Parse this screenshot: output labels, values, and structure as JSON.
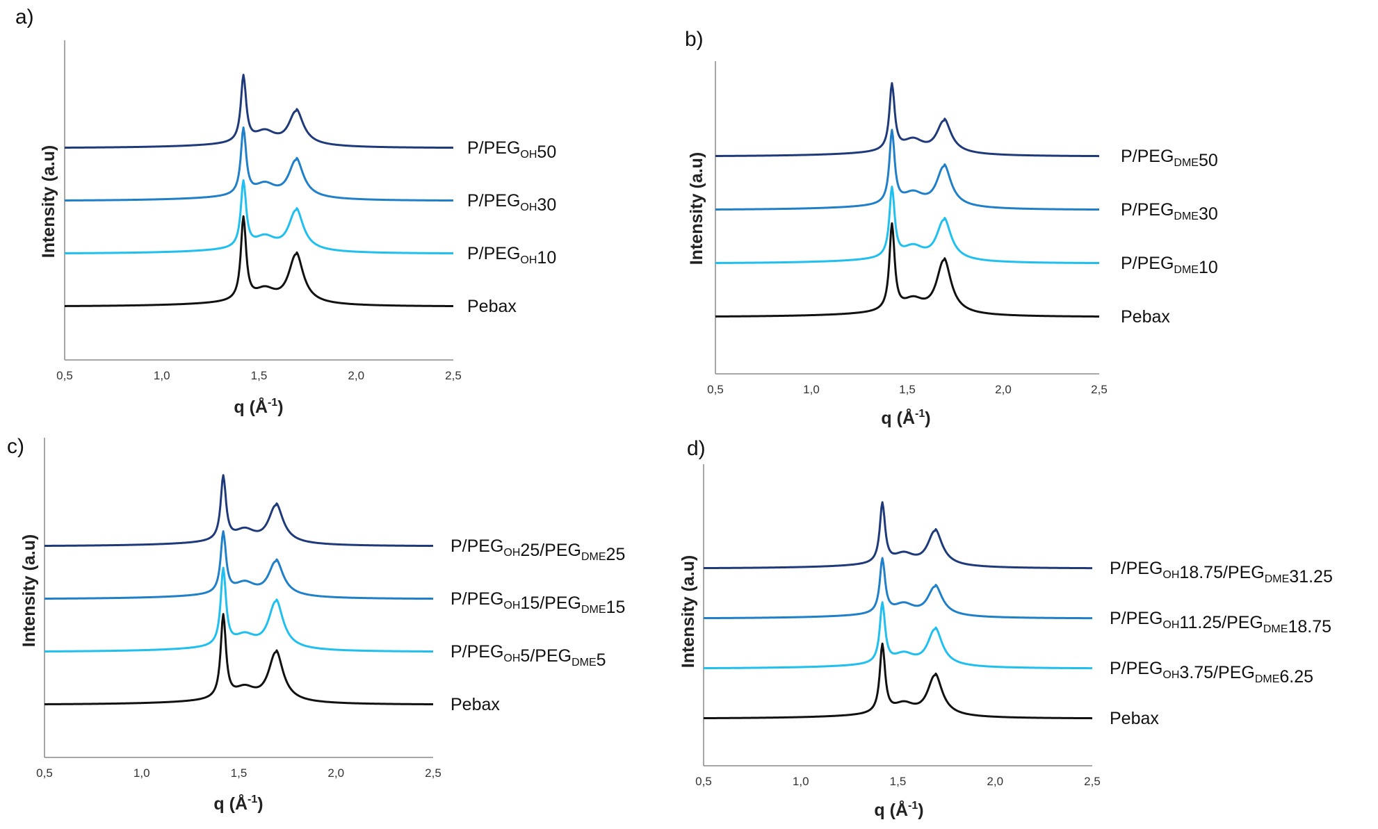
{
  "chart_data": [
    {
      "type": "line",
      "panel": "a)",
      "xlabel": "q (Å-1)",
      "ylabel": "Intensity (a.u)",
      "xlim": [
        0.5,
        2.5
      ],
      "xticks": [
        "0,5",
        "1,0",
        "1,5",
        "2,0",
        "2,5"
      ],
      "y_ticks_shown": false,
      "series": [
        {
          "name": "P/PEGOH50",
          "label_parts": [
            [
              "P/PEG",
              "n"
            ],
            [
              "OH",
              "s"
            ],
            [
              "50",
              "n"
            ]
          ],
          "color": "#1f3a7a",
          "offset": 3,
          "peak1": 1.0,
          "peak2": 0.52
        },
        {
          "name": "P/PEGOH30",
          "label_parts": [
            [
              "P/PEG",
              "n"
            ],
            [
              "OH",
              "s"
            ],
            [
              "30",
              "n"
            ]
          ],
          "color": "#1f7fc9",
          "offset": 2,
          "peak1": 1.0,
          "peak2": 0.58
        },
        {
          "name": "P/PEGOH10",
          "label_parts": [
            [
              "P/PEG",
              "n"
            ],
            [
              "OH",
              "s"
            ],
            [
              "10",
              "n"
            ]
          ],
          "color": "#1fbff0",
          "offset": 1,
          "peak1": 1.0,
          "peak2": 0.62
        },
        {
          "name": "Pebax",
          "label_parts": [
            [
              "Pebax",
              "n"
            ]
          ],
          "color": "#111111",
          "offset": 0,
          "peak1": 1.25,
          "peak2": 0.75
        }
      ]
    },
    {
      "type": "line",
      "panel": "b)",
      "xlabel": "q (Å-1)",
      "ylabel": "Intensity (a.u)",
      "xlim": [
        0.5,
        2.5
      ],
      "xticks": [
        "0,5",
        "1,0",
        "1,5",
        "2,0",
        "2,5"
      ],
      "y_ticks_shown": false,
      "series": [
        {
          "name": "P/PEGDME50",
          "label_parts": [
            [
              "P/PEG",
              "n"
            ],
            [
              "DME",
              "s"
            ],
            [
              "50",
              "n"
            ]
          ],
          "color": "#1f3a7a",
          "offset": 3,
          "peak1": 1.0,
          "peak2": 0.5
        },
        {
          "name": "P/PEGDME30",
          "label_parts": [
            [
              "P/PEG",
              "n"
            ],
            [
              "DME",
              "s"
            ],
            [
              "30",
              "n"
            ]
          ],
          "color": "#1f7fc9",
          "offset": 2,
          "peak1": 1.1,
          "peak2": 0.62
        },
        {
          "name": "P/PEGDME10",
          "label_parts": [
            [
              "P/PEG",
              "n"
            ],
            [
              "DME",
              "s"
            ],
            [
              "10",
              "n"
            ]
          ],
          "color": "#1fbff0",
          "offset": 1,
          "peak1": 1.05,
          "peak2": 0.62
        },
        {
          "name": "Pebax",
          "label_parts": [
            [
              "Pebax",
              "n"
            ]
          ],
          "color": "#111111",
          "offset": 0,
          "peak1": 1.3,
          "peak2": 0.82
        }
      ]
    },
    {
      "type": "line",
      "panel": "c)",
      "xlabel": "q (Å-1)",
      "ylabel": "Intensity (a.u)",
      "xlim": [
        0.5,
        2.5
      ],
      "xticks": [
        "0,5",
        "1,0",
        "1,5",
        "2,0",
        "2,5"
      ],
      "y_ticks_shown": false,
      "series": [
        {
          "name": "P/PEGOH25/PEGDME25",
          "label_parts": [
            [
              "P/PEG",
              "n"
            ],
            [
              "OH",
              "s"
            ],
            [
              "25/PEG",
              "n"
            ],
            [
              "DME",
              "s"
            ],
            [
              "25",
              "n"
            ]
          ],
          "color": "#1f3a7a",
          "offset": 3,
          "peak1": 1.0,
          "peak2": 0.6
        },
        {
          "name": "P/PEGOH15/PEGDME15",
          "label_parts": [
            [
              "P/PEG",
              "n"
            ],
            [
              "OH",
              "s"
            ],
            [
              "15/PEG",
              "n"
            ],
            [
              "DME",
              "s"
            ],
            [
              "15",
              "n"
            ]
          ],
          "color": "#1f7fc9",
          "offset": 2,
          "peak1": 0.95,
          "peak2": 0.55
        },
        {
          "name": "P/PEGOH5/PEGDME5",
          "label_parts": [
            [
              "P/PEG",
              "n"
            ],
            [
              "OH",
              "s"
            ],
            [
              "5/PEG",
              "n"
            ],
            [
              "DME",
              "s"
            ],
            [
              "5",
              "n"
            ]
          ],
          "color": "#1fbff0",
          "offset": 1,
          "peak1": 1.2,
          "peak2": 0.75
        },
        {
          "name": "Pebax",
          "label_parts": [
            [
              "Pebax",
              "n"
            ]
          ],
          "color": "#111111",
          "offset": 0,
          "peak1": 1.3,
          "peak2": 0.78
        }
      ]
    },
    {
      "type": "line",
      "panel": "d)",
      "xlabel": "q (Å-1)",
      "ylabel": "Intensity (a.u)",
      "xlim": [
        0.5,
        2.5
      ],
      "xticks": [
        "0,5",
        "1,0",
        "1,5",
        "2,0",
        "2,5"
      ],
      "y_ticks_shown": false,
      "series": [
        {
          "name": "P/PEGOH18.75/PEGDME31.25",
          "label_parts": [
            [
              "P/PEG",
              "n"
            ],
            [
              "OH",
              "s"
            ],
            [
              "18.75/PEG",
              "n"
            ],
            [
              "DME",
              "s"
            ],
            [
              "31.25",
              "n"
            ]
          ],
          "color": "#1f3a7a",
          "offset": 3,
          "peak1": 1.05,
          "peak2": 0.62
        },
        {
          "name": "P/PEGOH11.25/PEGDME18.75",
          "label_parts": [
            [
              "P/PEG",
              "n"
            ],
            [
              "OH",
              "s"
            ],
            [
              "11.25/PEG",
              "n"
            ],
            [
              "DME",
              "s"
            ],
            [
              "18.75",
              "n"
            ]
          ],
          "color": "#1f7fc9",
          "offset": 2,
          "peak1": 0.95,
          "peak2": 0.52
        },
        {
          "name": "P/PEGOH3.75/PEGDME6.25",
          "label_parts": [
            [
              "P/PEG",
              "n"
            ],
            [
              "OH",
              "s"
            ],
            [
              "3.75/PEG",
              "n"
            ],
            [
              "DME",
              "s"
            ],
            [
              "6.25",
              "n"
            ]
          ],
          "color": "#1fbff0",
          "offset": 1,
          "peak1": 1.05,
          "peak2": 0.65
        },
        {
          "name": "Pebax",
          "label_parts": [
            [
              "Pebax",
              "n"
            ]
          ],
          "color": "#111111",
          "offset": 0,
          "peak1": 1.2,
          "peak2": 0.72
        }
      ]
    }
  ]
}
